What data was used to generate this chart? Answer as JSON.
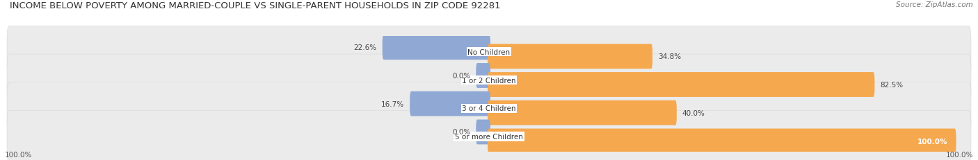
{
  "title": "INCOME BELOW POVERTY AMONG MARRIED-COUPLE VS SINGLE-PARENT HOUSEHOLDS IN ZIP CODE 92281",
  "source": "Source: ZipAtlas.com",
  "categories": [
    "No Children",
    "1 or 2 Children",
    "3 or 4 Children",
    "5 or more Children"
  ],
  "married_values": [
    22.6,
    0.0,
    16.7,
    0.0
  ],
  "single_values": [
    34.8,
    82.5,
    40.0,
    100.0
  ],
  "married_color": "#8fa8d4",
  "single_color": "#f5a84e",
  "single_light": "#fad4a6",
  "row_bg": "#ebebeb",
  "max_value": 100.0,
  "title_fontsize": 9.5,
  "source_fontsize": 7.5,
  "label_fontsize": 7.5,
  "value_fontsize": 7.5,
  "legend_fontsize": 7.5,
  "axis_label_fontsize": 7.5
}
